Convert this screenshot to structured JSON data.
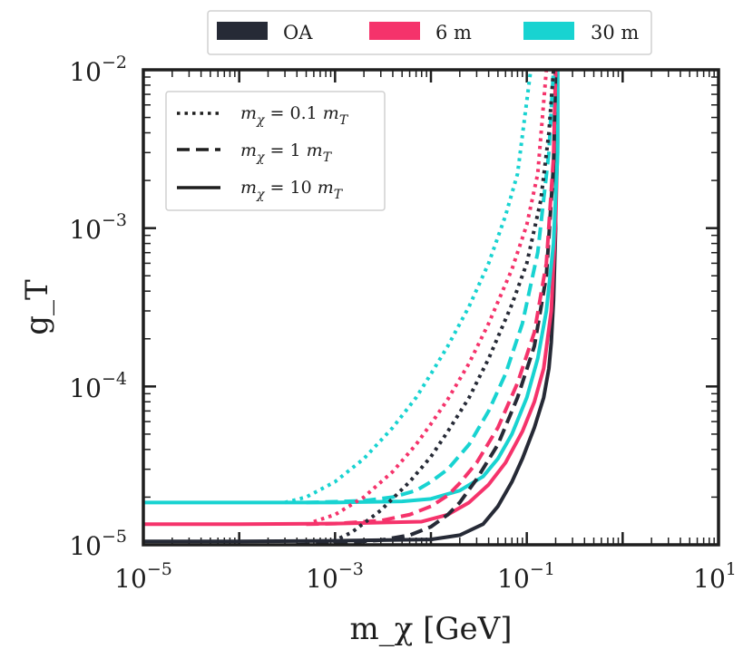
{
  "chart_data": {
    "type": "line",
    "xlabel": "m_χ [GeV]",
    "ylabel": "g_T",
    "xscale": "log",
    "yscale": "log",
    "xlim": [
      1e-05,
      10
    ],
    "ylim": [
      1e-05,
      0.01
    ],
    "x_tick_labels": [
      {
        "base": "10",
        "exp": "−5",
        "value": 1e-05
      },
      {
        "base": "10",
        "exp": "−3",
        "value": 0.001
      },
      {
        "base": "10",
        "exp": "−1",
        "value": 0.1
      },
      {
        "base": "10",
        "exp": "1",
        "value": 10
      }
    ],
    "y_tick_labels": [
      {
        "base": "10",
        "exp": "−5",
        "value": 1e-05
      },
      {
        "base": "10",
        "exp": "−4",
        "value": 0.0001
      },
      {
        "base": "10",
        "exp": "−3",
        "value": 0.001
      },
      {
        "base": "10",
        "exp": "−2",
        "value": 0.01
      }
    ],
    "legend_top": {
      "placement": "top-center",
      "entries": [
        {
          "label": "OA",
          "color": "#262a36"
        },
        {
          "label": "6 m",
          "color": "#f5336b"
        },
        {
          "label": "30 m",
          "color": "#18d3d1"
        }
      ]
    },
    "legend_inset": {
      "placement": "top-left",
      "entries": [
        {
          "label_base": "m",
          "label_sub": "χ",
          "label_mid": " = 0.1 ",
          "label_base2": "m",
          "label_sub2": "T",
          "linestyle": "dotted"
        },
        {
          "label_base": "m",
          "label_sub": "χ",
          "label_mid": " = 1 ",
          "label_base2": "m",
          "label_sub2": "T",
          "linestyle": "dashed"
        },
        {
          "label_base": "m",
          "label_sub": "χ",
          "label_mid": " = 10 ",
          "label_base2": "m",
          "label_sub2": "T",
          "linestyle": "solid"
        }
      ]
    },
    "series": [
      {
        "name": "OA, m_χ = 10 m_T",
        "color": "#262a36",
        "linestyle": "solid",
        "x": [
          1e-05,
          0.0001,
          0.001,
          0.01,
          0.02,
          0.035,
          0.05,
          0.07,
          0.09,
          0.12,
          0.15,
          0.17,
          0.18,
          0.19,
          0.2,
          0.2,
          0.2
        ],
        "y": [
          1.05e-05,
          1.05e-05,
          1.06e-05,
          1.08e-05,
          1.15e-05,
          1.35e-05,
          1.75e-05,
          2.5e-05,
          3.5e-05,
          5.5e-05,
          8.5e-05,
          0.00013,
          0.00019,
          0.00035,
          0.001,
          0.003,
          0.01
        ]
      },
      {
        "name": "6 m, m_χ = 10 m_T",
        "color": "#f5336b",
        "linestyle": "solid",
        "x": [
          1e-05,
          0.0001,
          0.001,
          0.008,
          0.015,
          0.025,
          0.04,
          0.06,
          0.09,
          0.12,
          0.15,
          0.18,
          0.2,
          0.21,
          0.21
        ],
        "y": [
          1.35e-05,
          1.35e-05,
          1.36e-05,
          1.4e-05,
          1.55e-05,
          1.85e-05,
          2.4e-05,
          3.3e-05,
          5.2e-05,
          8e-05,
          0.00013,
          0.0003,
          0.0011,
          0.0035,
          0.01
        ]
      },
      {
        "name": "30 m, m_χ = 10 m_T",
        "color": "#18d3d1",
        "linestyle": "solid",
        "x": [
          1e-05,
          0.0001,
          0.001,
          0.005,
          0.01,
          0.02,
          0.035,
          0.05,
          0.07,
          0.1,
          0.13,
          0.16,
          0.19,
          0.21,
          0.21
        ],
        "y": [
          1.85e-05,
          1.85e-05,
          1.85e-05,
          1.88e-05,
          1.95e-05,
          2.2e-05,
          2.7e-05,
          3.5e-05,
          5e-05,
          8.5e-05,
          0.00015,
          0.0003,
          0.0008,
          0.003,
          0.01
        ]
      },
      {
        "name": "OA, m_χ = 1 m_T",
        "color": "#262a36",
        "linestyle": "dashed",
        "x": [
          0.0004,
          0.001,
          0.003,
          0.006,
          0.01,
          0.015,
          0.02,
          0.03,
          0.05,
          0.08,
          0.12,
          0.16,
          0.19,
          0.2
        ],
        "y": [
          1e-05,
          1.02e-05,
          1.07e-05,
          1.15e-05,
          1.3e-05,
          1.55e-05,
          1.85e-05,
          2.6e-05,
          4.3e-05,
          8.5e-05,
          0.00018,
          0.0005,
          0.0025,
          0.01
        ]
      },
      {
        "name": "6 m, m_χ = 1 m_T",
        "color": "#f5336b",
        "linestyle": "dashed",
        "x": [
          0.0005,
          0.001,
          0.003,
          0.006,
          0.01,
          0.015,
          0.02,
          0.03,
          0.05,
          0.08,
          0.12,
          0.16,
          0.19,
          0.2
        ],
        "y": [
          1.35e-05,
          1.36e-05,
          1.42e-05,
          1.55e-05,
          1.75e-05,
          2.05e-05,
          2.45e-05,
          3.3e-05,
          5.5e-05,
          0.000105,
          0.00022,
          0.0006,
          0.0028,
          0.01
        ]
      },
      {
        "name": "30 m, m_χ = 1 m_T",
        "color": "#18d3d1",
        "linestyle": "dashed",
        "x": [
          0.0005,
          0.001,
          0.002,
          0.004,
          0.007,
          0.01,
          0.015,
          0.025,
          0.04,
          0.06,
          0.09,
          0.13,
          0.17,
          0.19
        ],
        "y": [
          1.85e-05,
          1.87e-05,
          1.9e-05,
          2e-05,
          2.2e-05,
          2.5e-05,
          3e-05,
          4.3e-05,
          7e-05,
          0.00012,
          0.00025,
          0.0007,
          0.003,
          0.01
        ]
      },
      {
        "name": "OA, m_χ = 0.1 m_T",
        "color": "#262a36",
        "linestyle": "dotted",
        "x": [
          0.0008,
          0.0015,
          0.003,
          0.006,
          0.01,
          0.015,
          0.025,
          0.04,
          0.07,
          0.1,
          0.14,
          0.17,
          0.19
        ],
        "y": [
          1e-05,
          1.2e-05,
          1.65e-05,
          2.5e-05,
          3.6e-05,
          5.2e-05,
          8.5e-05,
          0.00015,
          0.00033,
          0.0006,
          0.0015,
          0.004,
          0.01
        ]
      },
      {
        "name": "6 m, m_χ = 0.1 m_T",
        "color": "#f5336b",
        "linestyle": "dotted",
        "x": [
          0.0006,
          0.001,
          0.002,
          0.004,
          0.007,
          0.01,
          0.015,
          0.025,
          0.04,
          0.07,
          0.1,
          0.13,
          0.16
        ],
        "y": [
          1.4e-05,
          1.55e-05,
          2e-05,
          2.9e-05,
          4.3e-05,
          5.8e-05,
          8.3e-05,
          0.00014,
          0.00025,
          0.00055,
          0.00105,
          0.0022,
          0.01
        ]
      },
      {
        "name": "30 m, m_χ = 0.1 m_T",
        "color": "#18d3d1",
        "linestyle": "dotted",
        "x": [
          0.0003,
          0.0005,
          0.001,
          0.002,
          0.004,
          0.007,
          0.01,
          0.015,
          0.025,
          0.04,
          0.06,
          0.08,
          0.11
        ],
        "y": [
          1.85e-05,
          2e-05,
          2.5e-05,
          3.5e-05,
          5.5e-05,
          8.5e-05,
          0.00012,
          0.00018,
          0.00032,
          0.0006,
          0.0012,
          0.0022,
          0.01
        ]
      }
    ]
  }
}
